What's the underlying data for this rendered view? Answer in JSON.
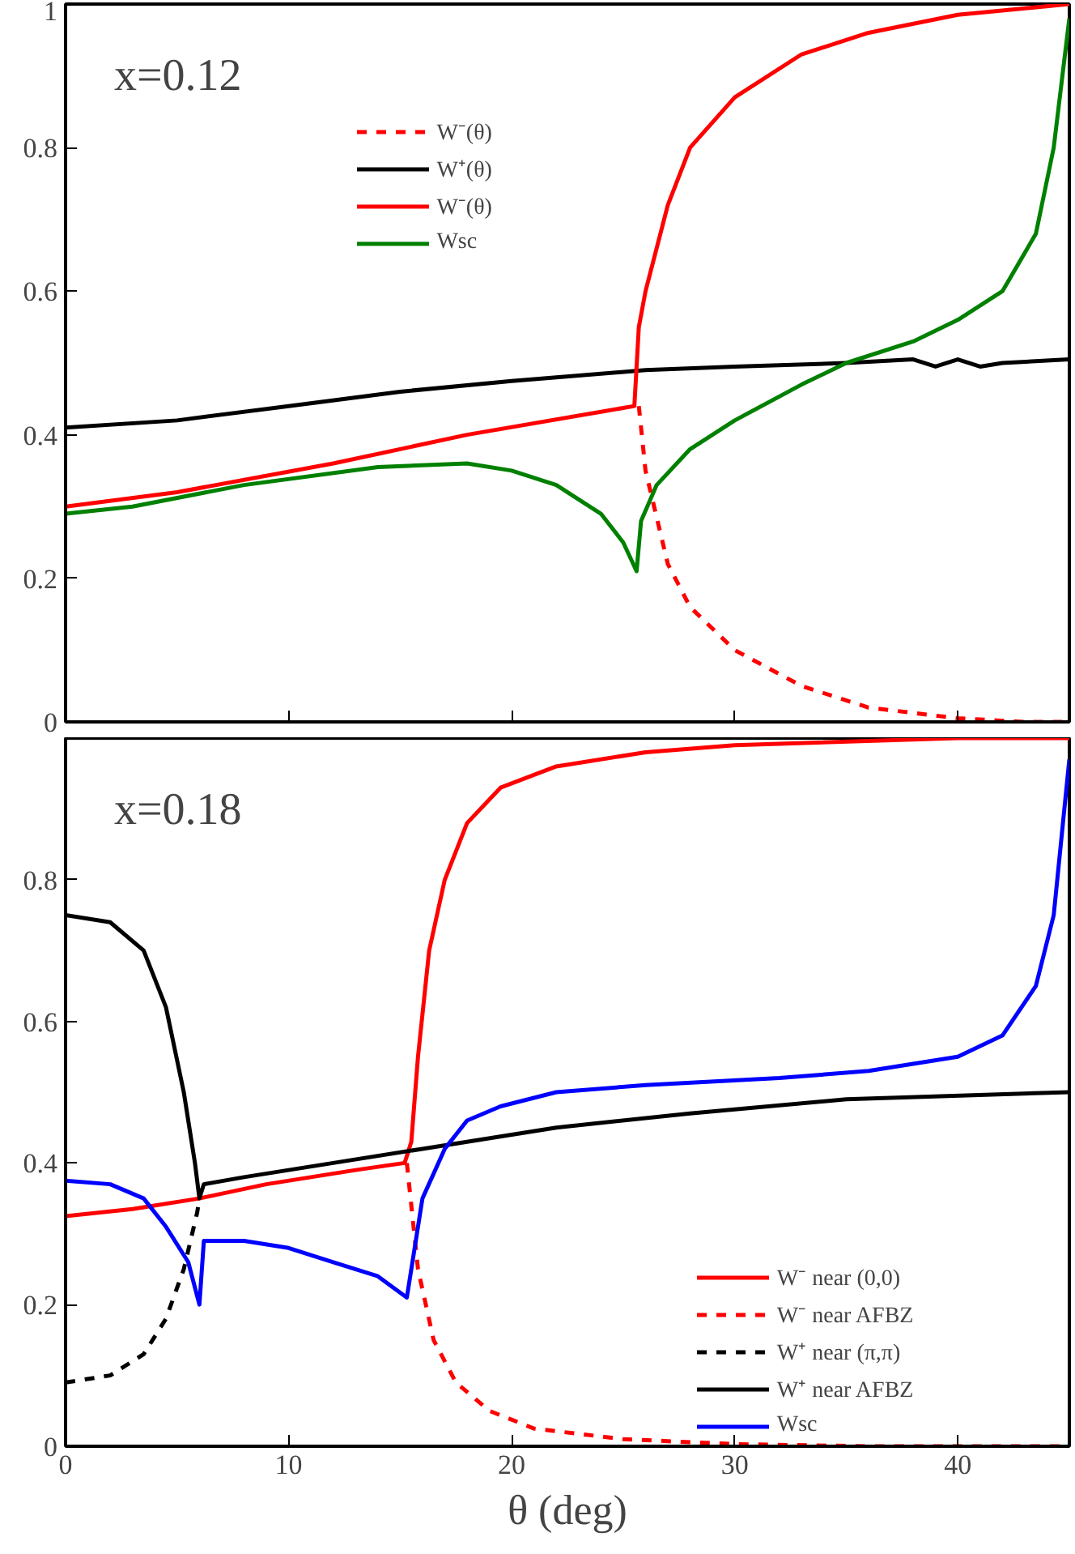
{
  "chart_data": [
    {
      "type": "line",
      "annotations": [
        "x=0.12"
      ],
      "xlim": [
        0,
        45
      ],
      "xticks": [
        0,
        10,
        20,
        30,
        40
      ],
      "ylim": [
        0,
        1
      ],
      "yticks": [
        0,
        0.2,
        0.4,
        0.6,
        0.8,
        1
      ],
      "tick_labels": "y",
      "grid": false,
      "legend": "top",
      "series": [
        {
          "name": "W⁻(θ)",
          "color": "#ff0000",
          "line_style": "dashed",
          "x": [
            25.7,
            26,
            27,
            28,
            30,
            33,
            36,
            40,
            43,
            45
          ],
          "values": [
            0.44,
            0.35,
            0.22,
            0.16,
            0.1,
            0.05,
            0.02,
            0.005,
            0,
            0
          ]
        },
        {
          "name": "W⁺(θ)",
          "color": "#000000",
          "line_style": "solid",
          "x": [
            0,
            5,
            10,
            15,
            20,
            26,
            30,
            35,
            38,
            39,
            40,
            41,
            42,
            45
          ],
          "values": [
            0.41,
            0.42,
            0.44,
            0.46,
            0.475,
            0.49,
            0.495,
            0.5,
            0.505,
            0.495,
            0.505,
            0.495,
            0.5,
            0.505
          ]
        },
        {
          "name": "W⁻(θ)",
          "color": "#ff0000",
          "line_style": "solid",
          "x": [
            0,
            5,
            12,
            18,
            25.5,
            25.7,
            26,
            27,
            28,
            30,
            33,
            36,
            40,
            45
          ],
          "values": [
            0.3,
            0.32,
            0.36,
            0.4,
            0.44,
            0.55,
            0.6,
            0.72,
            0.8,
            0.87,
            0.93,
            0.96,
            0.985,
            1.0
          ]
        },
        {
          "name": "Wsc",
          "color": "#008000",
          "line_style": "solid",
          "x": [
            0,
            3,
            8,
            14,
            18,
            20,
            22,
            24,
            25,
            25.6,
            25.8,
            26.5,
            28,
            30,
            33,
            35,
            38,
            40,
            42,
            43.5,
            44.3,
            45
          ],
          "values": [
            0.29,
            0.3,
            0.33,
            0.355,
            0.36,
            0.35,
            0.33,
            0.29,
            0.25,
            0.21,
            0.28,
            0.33,
            0.38,
            0.42,
            0.47,
            0.5,
            0.53,
            0.56,
            0.6,
            0.68,
            0.8,
            0.98
          ]
        }
      ]
    },
    {
      "type": "line",
      "annotations": [
        "x=0.18"
      ],
      "xlabel": "θ (deg)",
      "xlim": [
        0,
        45
      ],
      "xticks": [
        0,
        10,
        20,
        30,
        40
      ],
      "ylim": [
        0,
        1
      ],
      "yticks": [
        0,
        0.2,
        0.4,
        0.6,
        0.8,
        {
          "value": 1,
          "label": null
        }
      ],
      "grid": false,
      "legend": "bottom right",
      "series": [
        {
          "name": "W⁻ near (0,0)",
          "color": "#ff0000",
          "line_style": "solid",
          "x": [
            0,
            3,
            6,
            9,
            13,
            15.2,
            15.5,
            15.8,
            16.3,
            17,
            18,
            19.5,
            22,
            26,
            30,
            40,
            45
          ],
          "values": [
            0.325,
            0.335,
            0.35,
            0.37,
            0.39,
            0.4,
            0.43,
            0.55,
            0.7,
            0.8,
            0.88,
            0.93,
            0.96,
            0.98,
            0.99,
            1.0,
            1.0
          ]
        },
        {
          "name": "W⁻ near AFBZ",
          "color": "#ff0000",
          "line_style": "dashed",
          "x": [
            15.3,
            15.8,
            16.5,
            17.5,
            19,
            21,
            25,
            30,
            36,
            45
          ],
          "values": [
            0.4,
            0.25,
            0.15,
            0.09,
            0.05,
            0.025,
            0.01,
            0.003,
            0,
            0
          ]
        },
        {
          "name": "W⁺ near (π,π)",
          "color": "#000000",
          "line_style": "dashed",
          "x": [
            0,
            2,
            3.5,
            4.5,
            5.3,
            5.9,
            6.0
          ],
          "values": [
            0.09,
            0.1,
            0.13,
            0.18,
            0.25,
            0.33,
            0.35
          ]
        },
        {
          "name": "W⁺ near AFBZ",
          "color": "#000000",
          "line_style": "solid",
          "x": [
            0,
            2,
            3.5,
            4.5,
            5.3,
            5.8,
            6.0,
            6.2,
            8,
            12,
            16,
            22,
            28,
            35,
            45
          ],
          "values": [
            0.75,
            0.74,
            0.7,
            0.62,
            0.5,
            0.4,
            0.35,
            0.37,
            0.38,
            0.4,
            0.42,
            0.45,
            0.47,
            0.49,
            0.5
          ]
        },
        {
          "name": "Wsc",
          "color": "#0000ff",
          "line_style": "solid",
          "x": [
            0,
            2,
            3.5,
            4.5,
            5.5,
            6.0,
            6.2,
            8,
            10,
            12,
            14,
            15.3,
            15.6,
            16,
            17,
            18,
            19.5,
            22,
            26,
            32,
            36,
            40,
            42,
            43.5,
            44.3,
            45
          ],
          "values": [
            0.375,
            0.37,
            0.35,
            0.31,
            0.26,
            0.2,
            0.29,
            0.29,
            0.28,
            0.26,
            0.24,
            0.21,
            0.27,
            0.35,
            0.42,
            0.46,
            0.48,
            0.5,
            0.51,
            0.52,
            0.53,
            0.55,
            0.58,
            0.65,
            0.75,
            0.97
          ]
        }
      ]
    }
  ]
}
